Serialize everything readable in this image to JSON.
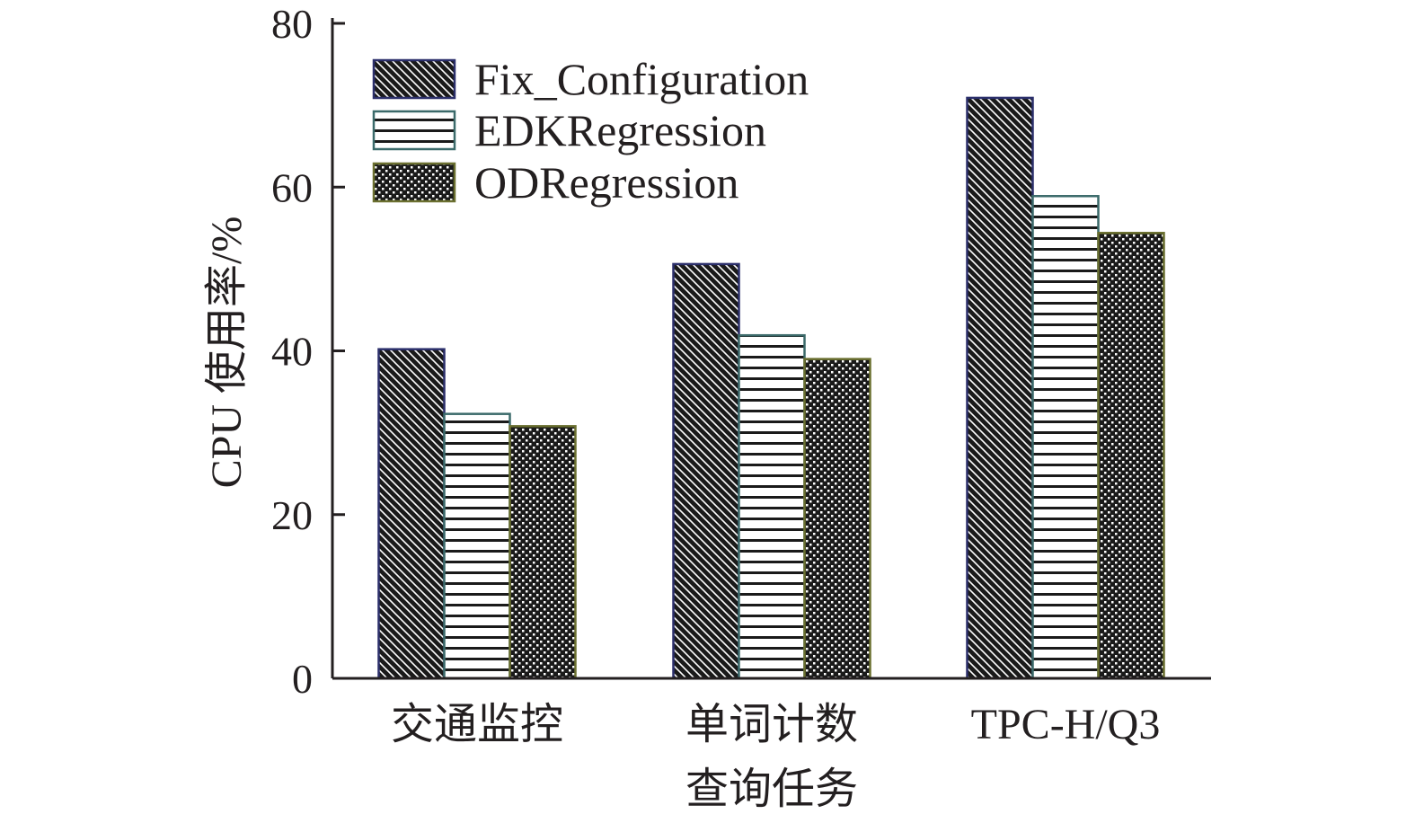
{
  "chart_data": {
    "type": "bar",
    "xlabel": "查询任务",
    "ylabel": "CPU 使用率/%",
    "categories": [
      "交通监控",
      "单词计数",
      "TPC-H/Q3"
    ],
    "ylim": [
      0,
      80
    ],
    "yticks": [
      0,
      20,
      40,
      60,
      80
    ],
    "legend_position": "top-left",
    "grid": false,
    "series": [
      {
        "name": "Fix_Configuration",
        "values": [
          40.2,
          50.6,
          70.9
        ],
        "pattern": "diagonal",
        "color": "#1a1a1a"
      },
      {
        "name": "EDKRegression",
        "values": [
          32.3,
          41.9,
          58.9
        ],
        "pattern": "horizontal",
        "color": "#1a1a1a"
      },
      {
        "name": "ODRegression",
        "values": [
          30.8,
          39.0,
          54.4
        ],
        "pattern": "checker",
        "color": "#1a1a1a"
      }
    ]
  }
}
